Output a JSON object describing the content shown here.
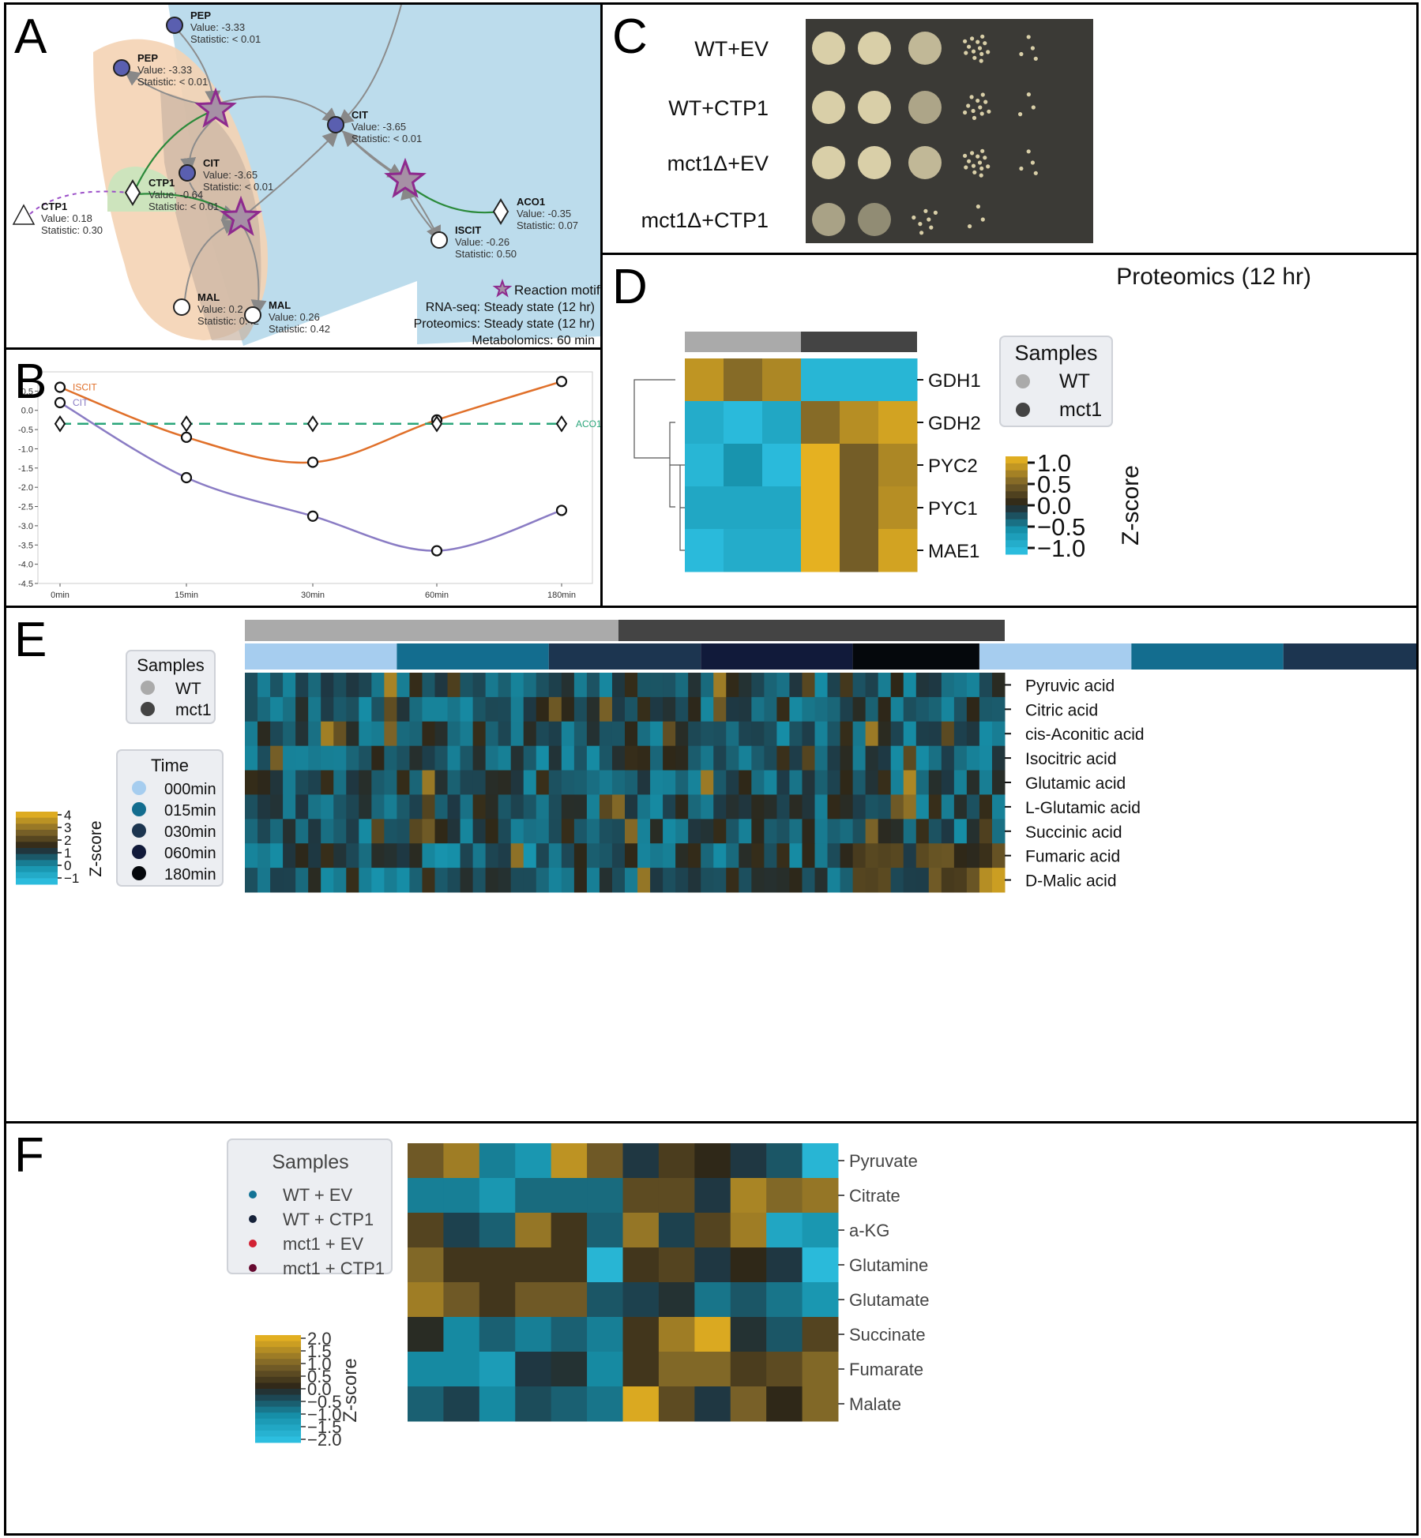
{
  "panels": {
    "a": {
      "label": "A",
      "nodes": [
        {
          "name": "PEP",
          "value": "Value: -3.33",
          "stat": "Statistic: < 0.01"
        },
        {
          "name": "PEP",
          "value": "Value: -3.33",
          "stat": "Statistic: < 0.01"
        },
        {
          "name": "CIT",
          "value": "Value: -3.65",
          "stat": "Statistic: < 0.01"
        },
        {
          "name": "CIT",
          "value": "Value: -3.65",
          "stat": "Statistic: < 0.01"
        },
        {
          "name": "CTP1",
          "value": "Value: -0.64",
          "stat": "Statistic: < 0.01"
        },
        {
          "name": "CTP1",
          "value": "Value: 0.18",
          "stat": "Statistic: 0.30"
        },
        {
          "name": "ACO1",
          "value": "Value: -0.35",
          "stat": "Statistic: 0.07"
        },
        {
          "name": "ISCIT",
          "value": "Value: -0.26",
          "stat": "Statistic: 0.50"
        },
        {
          "name": "MAL",
          "value": "Value: 0.2",
          "stat": "Statistic: 0.42"
        },
        {
          "name": "MAL",
          "value": "Value: 0.26",
          "stat": "Statistic: 0.42"
        }
      ],
      "legend": {
        "motif": "Reaction motif",
        "rnaseq": "RNA-seq: Steady state (12 hr)",
        "proteomics": "Proteomics: Steady state (12 hr)",
        "metabolomics": "Metabolomics: 60 min"
      },
      "colors": {
        "blue_region": "#bcdcec",
        "orange_region": "#f4d3b4",
        "green_region": "#cde4bd",
        "node_fill": "#5a5fb0",
        "star": "#8e2a8e"
      }
    },
    "b": {
      "label": "B",
      "chart_data": {
        "type": "line",
        "x": [
          "0min",
          "15min",
          "30min",
          "60min",
          "180min"
        ],
        "series": [
          {
            "name": "ISCIT",
            "values": [
              0.6,
              -0.7,
              -1.35,
              -0.25,
              0.75
            ],
            "color": "#e0702a"
          },
          {
            "name": "CIT",
            "values": [
              0.2,
              -1.75,
              -2.75,
              -3.65,
              -2.6
            ],
            "color": "#8a7cc4"
          },
          {
            "name": "ACO1",
            "values": [
              -0.35,
              -0.35,
              -0.35,
              -0.35,
              -0.35
            ],
            "color": "#2aa57a"
          }
        ],
        "yticks": [
          "0.5",
          "0.0",
          "-0.5",
          "-1.0",
          "-1.5",
          "-2.0",
          "-2.5",
          "-3.0",
          "-3.5",
          "-4.0",
          "-4.5"
        ],
        "ylim": [
          -4.5,
          1.0
        ]
      }
    },
    "c": {
      "label": "C",
      "rows": [
        "WT+EV",
        "WT+CTP1",
        "mct1Δ+EV",
        "mct1Δ+CTP1"
      ],
      "colors": {
        "plate": "#3b3a36",
        "colony": "#d9cfa8"
      }
    },
    "d": {
      "label": "D",
      "title": "Proteomics (12 hr)",
      "chart_data": {
        "type": "heatmap",
        "rows": [
          "GDH1",
          "GDH2",
          "PYC2",
          "PYC1",
          "MAE1"
        ],
        "columns": [
          "WT",
          "WT",
          "WT",
          "mct1",
          "mct1",
          "mct1"
        ],
        "values": [
          [
            0.85,
            0.55,
            0.75,
            -0.95,
            -0.95,
            -0.95
          ],
          [
            -0.85,
            -1.0,
            -0.8,
            0.55,
            0.8,
            0.95
          ],
          [
            -0.95,
            -0.6,
            -1.0,
            1.05,
            0.45,
            0.75
          ],
          [
            -0.8,
            -0.8,
            -0.8,
            1.05,
            0.45,
            0.8
          ],
          [
            -1.0,
            -0.85,
            -0.85,
            1.05,
            0.45,
            0.95
          ]
        ],
        "colorbar_ticks": [
          "1.0",
          "0.5",
          "0.0",
          "−0.5",
          "−1.0"
        ],
        "colorbar_label": "Z-score",
        "legend_title": "Samples",
        "legend_items": [
          {
            "label": "WT",
            "color": "#aaaaaa"
          },
          {
            "label": "mct1",
            "color": "#444444"
          }
        ]
      }
    },
    "e": {
      "label": "E",
      "chart_data": {
        "type": "heatmap",
        "rows": [
          "Pyruvic acid",
          "Citric acid",
          "cis-Aconitic acid",
          "Isocitric acid",
          "Glutamic acid",
          "L-Glutamic acid",
          "Succinic acid",
          "Fumaric acid",
          "D-Malic acid"
        ],
        "n_columns": 60,
        "colorbar_ticks": [
          "4",
          "3",
          "2",
          "1",
          "0",
          "−1"
        ],
        "colorbar_label": "Z-score",
        "samples_title": "Samples",
        "samples": [
          {
            "label": "WT",
            "color": "#aaaaaa"
          },
          {
            "label": "mct1",
            "color": "#444444"
          }
        ],
        "time_title": "Time",
        "times": [
          {
            "label": "000min",
            "color": "#a6cdef"
          },
          {
            "label": "015min",
            "color": "#136d8f"
          },
          {
            "label": "030min",
            "color": "#1c3550"
          },
          {
            "label": "060min",
            "color": "#111a3a"
          },
          {
            "label": "180min",
            "color": "#05080c"
          }
        ]
      }
    },
    "f": {
      "label": "F",
      "chart_data": {
        "type": "heatmap",
        "rows": [
          "Pyruvate",
          "Citrate",
          "a-KG",
          "Glutamine",
          "Glutamate",
          "Succinate",
          "Fumarate",
          "Malate"
        ],
        "groups": [
          {
            "label": "WT + EV",
            "color": "#137396"
          },
          {
            "label": "WT + CTP1",
            "color": "#16223a"
          },
          {
            "label": "mct1 + EV",
            "color": "#d22234"
          },
          {
            "label": "mct1 + CTP1",
            "color": "#660a30"
          }
        ],
        "values": [
          [
            0.8,
            1.3,
            -0.9,
            -1.2,
            1.6,
            0.8,
            -0.2,
            0.4,
            0.1,
            -0.2,
            -0.5,
            -1.8
          ],
          [
            -0.9,
            -0.9,
            -1.2,
            -0.7,
            -0.7,
            -0.7,
            0.6,
            0.6,
            -0.2,
            1.4,
            1.0,
            1.2
          ],
          [
            0.5,
            -0.3,
            -0.6,
            1.2,
            0.3,
            -0.6,
            1.2,
            -0.3,
            0.5,
            1.3,
            -1.5,
            -1.2
          ],
          [
            1.0,
            0.3,
            0.3,
            0.3,
            0.3,
            -1.8,
            0.3,
            0.5,
            -0.2,
            0.1,
            -0.2,
            -1.9
          ],
          [
            1.3,
            0.8,
            0.3,
            0.8,
            0.8,
            -0.5,
            -0.3,
            -0.1,
            -0.8,
            -0.5,
            -0.8,
            -1.2
          ],
          [
            0.0,
            -1.0,
            -0.6,
            -0.9,
            -0.6,
            -0.9,
            0.3,
            1.3,
            1.9,
            -0.1,
            -0.5,
            0.5
          ],
          [
            -1.0,
            -1.0,
            -1.3,
            -0.2,
            -0.1,
            -1.0,
            0.3,
            1.0,
            1.0,
            0.4,
            0.6,
            1.0
          ],
          [
            -0.6,
            -0.3,
            -1.0,
            -0.4,
            -0.6,
            -0.8,
            1.9,
            0.6,
            -0.2,
            0.9,
            0.1,
            1.0
          ]
        ],
        "colorbar_ticks": [
          "2.0",
          "1.5",
          "1.0",
          "0.5",
          "0.0",
          "−0.5",
          "−1.0",
          "−1.5",
          "−2.0"
        ],
        "colorbar_label": "Z-score",
        "legend_title": "Samples"
      }
    }
  }
}
